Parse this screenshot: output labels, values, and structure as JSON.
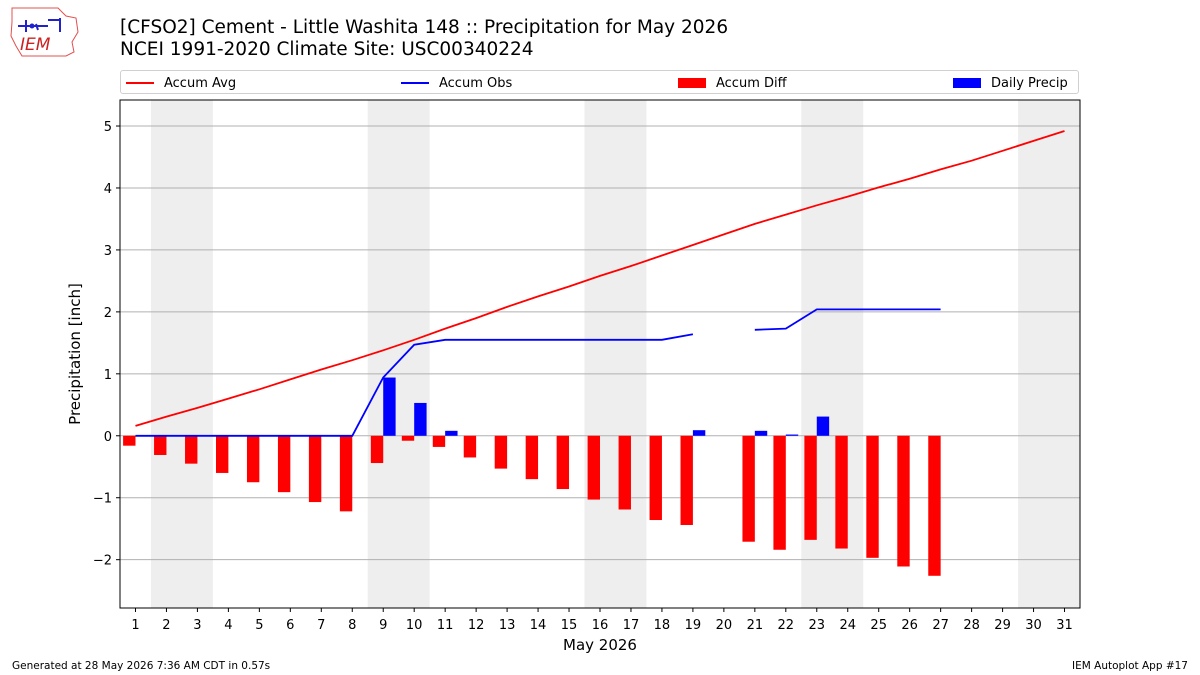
{
  "header": {
    "logo_text": "IEM",
    "title_line1": "[CFSO2] Cement - Little Washita 148 :: Precipitation for May 2026",
    "title_line2": "NCEI 1991-2020 Climate Site: USC00340224"
  },
  "legend": {
    "accum_avg": "Accum Avg",
    "accum_obs": "Accum Obs",
    "accum_diff": "Accum Diff",
    "daily_precip": "Daily Precip"
  },
  "footer": {
    "left": "Generated at 28 May 2026 7:36 AM CDT in 0.57s",
    "right": "IEM Autoplot App #17"
  },
  "colors": {
    "avg": "#ff0000",
    "obs": "#0000ff",
    "diff": "#ff0000",
    "daily": "#0000ff",
    "weekend_shade": "#eeeeee",
    "grid": "#b0b0b0"
  },
  "chart_data": {
    "type": "bar",
    "xlabel": "May 2026",
    "ylabel": "Precipitation [inch]",
    "xlim": [
      0.5,
      31.5
    ],
    "ylim": [
      -2.78,
      5.42
    ],
    "yticks": [
      -2,
      -1,
      0,
      1,
      2,
      3,
      4,
      5
    ],
    "ytick_labels": [
      "−2",
      "−1",
      "0",
      "1",
      "2",
      "3",
      "4",
      "5"
    ],
    "grid": "y",
    "legend_placement": "top",
    "days": [
      1,
      2,
      3,
      4,
      5,
      6,
      7,
      8,
      9,
      10,
      11,
      12,
      13,
      14,
      15,
      16,
      17,
      18,
      19,
      20,
      21,
      22,
      23,
      24,
      25,
      26,
      27,
      28,
      29,
      30,
      31
    ],
    "weekend_spans": [
      [
        2,
        3
      ],
      [
        9,
        10
      ],
      [
        16,
        17
      ],
      [
        23,
        24
      ],
      [
        30,
        31
      ]
    ],
    "series": [
      {
        "name": "Accum Avg",
        "kind": "line",
        "values": [
          0.16,
          0.31,
          0.45,
          0.6,
          0.75,
          0.91,
          1.07,
          1.22,
          1.38,
          1.55,
          1.73,
          1.9,
          2.08,
          2.25,
          2.41,
          2.58,
          2.74,
          2.91,
          3.08,
          3.25,
          3.42,
          3.57,
          3.72,
          3.86,
          4.01,
          4.15,
          4.3,
          4.44,
          4.6,
          4.76,
          4.92
        ]
      },
      {
        "name": "Accum Obs",
        "kind": "line",
        "values": [
          0,
          0,
          0,
          0,
          0,
          0,
          0,
          0,
          0.94,
          1.47,
          1.55,
          1.55,
          1.55,
          1.55,
          1.55,
          1.55,
          1.55,
          1.55,
          1.64,
          null,
          1.71,
          1.73,
          2.04,
          2.04,
          2.04,
          2.04,
          2.04,
          null,
          null,
          null,
          null
        ]
      },
      {
        "name": "Accum Diff",
        "kind": "bar",
        "values": [
          -0.16,
          -0.31,
          -0.45,
          -0.6,
          -0.75,
          -0.91,
          -1.07,
          -1.22,
          -0.44,
          -0.08,
          -0.18,
          -0.35,
          -0.53,
          -0.7,
          -0.86,
          -1.03,
          -1.19,
          -1.36,
          -1.44,
          null,
          -1.71,
          -1.84,
          -1.68,
          -1.82,
          -1.97,
          -2.11,
          -2.26,
          null,
          null,
          null,
          null
        ]
      },
      {
        "name": "Daily Precip",
        "kind": "bar",
        "values": [
          0,
          0,
          0,
          0,
          0,
          0,
          0,
          0,
          0.94,
          0.53,
          0.08,
          0,
          0,
          0,
          0,
          0,
          0,
          0,
          0.09,
          null,
          0.08,
          0.02,
          0.31,
          0,
          0,
          0,
          0,
          null,
          null,
          null,
          null
        ]
      }
    ]
  }
}
